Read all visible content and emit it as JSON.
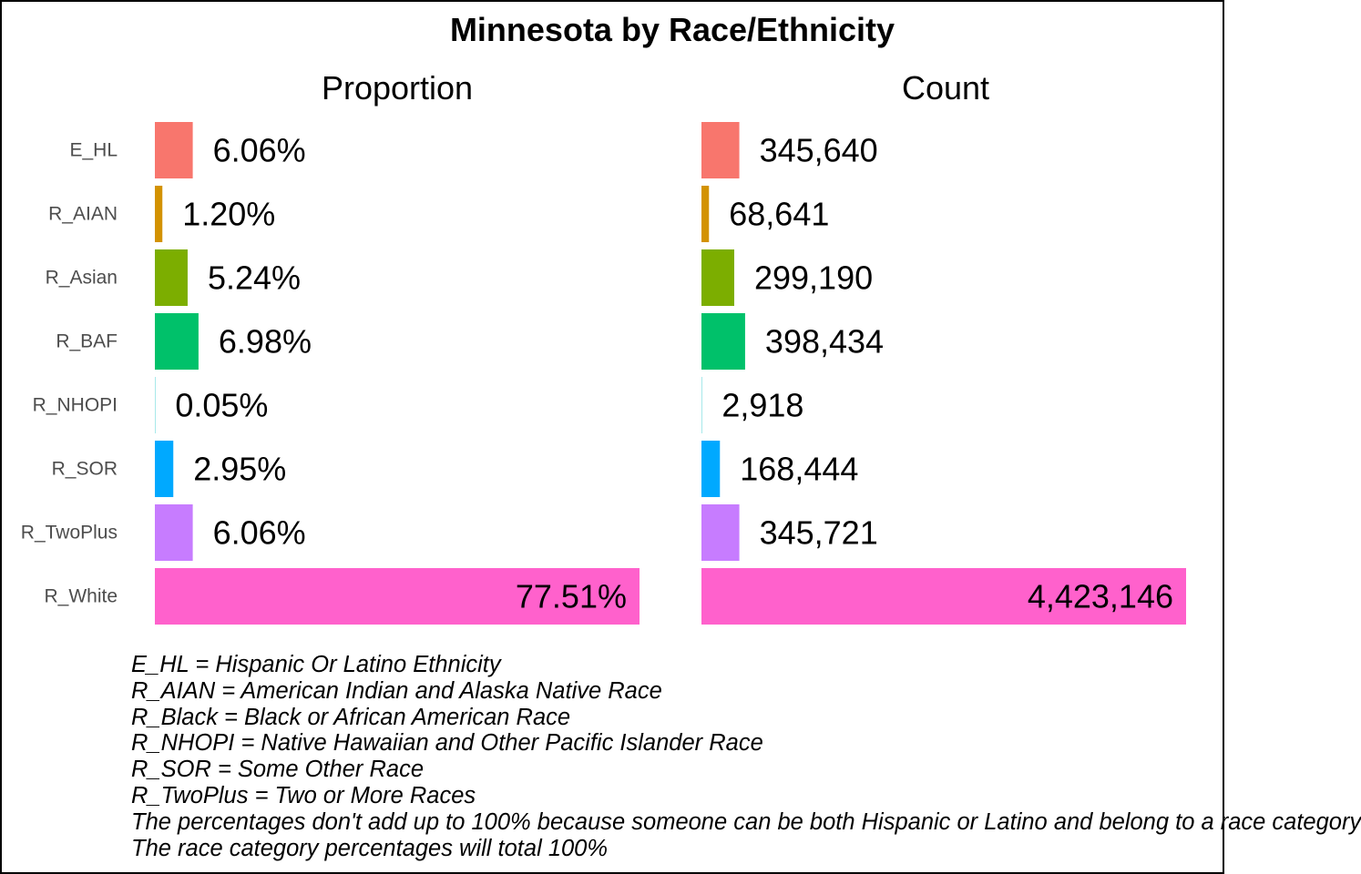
{
  "chart_data": {
    "type": "bar",
    "orientation": "horizontal",
    "title": "Minnesota by Race/Ethnicity",
    "categories": [
      "E_HL",
      "R_AIAN",
      "R_Asian",
      "R_BAF",
      "R_NHOPI",
      "R_SOR",
      "R_TwoPlus",
      "R_White"
    ],
    "colors": [
      "#F8766D",
      "#D39200",
      "#7CAE00",
      "#00C16A",
      "#00BFC4",
      "#00A9FF",
      "#C77CFF",
      "#FF61CC"
    ],
    "panels": [
      {
        "title": "Proportion",
        "values": [
          6.06,
          1.2,
          5.24,
          6.98,
          0.05,
          2.95,
          6.06,
          77.51
        ],
        "labels": [
          "6.06%",
          "1.20%",
          "5.24%",
          "6.98%",
          "0.05%",
          "2.95%",
          "6.06%",
          "77.51%"
        ]
      },
      {
        "title": "Count",
        "values": [
          345640,
          68641,
          299190,
          398434,
          2918,
          168444,
          345721,
          4423146
        ],
        "labels": [
          "345,640",
          "68,641",
          "299,190",
          "398,434",
          "2,918",
          "168,444",
          "345,721",
          "4,423,146"
        ]
      }
    ],
    "grid": false,
    "legend": "none"
  },
  "notes": [
    "E_HL = Hispanic Or Latino Ethnicity",
    "R_AIAN = American Indian and Alaska Native Race",
    "R_Black = Black or African American Race",
    "R_NHOPI = Native Hawaiian and Other Pacific Islander Race",
    "R_SOR = Some Other Race",
    "R_TwoPlus = Two or More Races",
    "The percentages don't add up to 100% because someone can be both Hispanic or Latino and belong to a race category",
    "The race category percentages will total 100%"
  ]
}
